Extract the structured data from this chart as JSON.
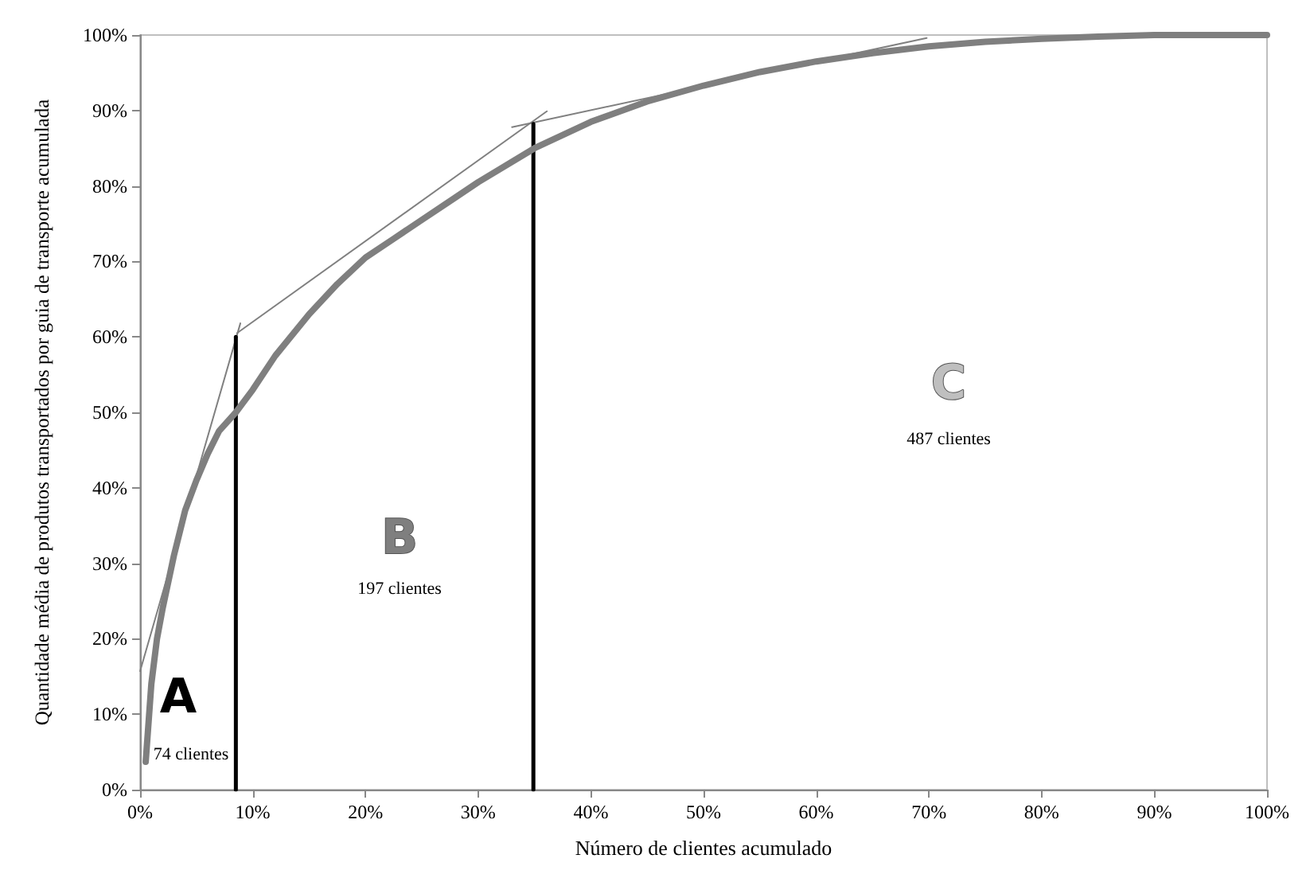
{
  "chart_data": {
    "type": "line",
    "xlabel": "Número de clientes acumulado",
    "ylabel": "Quantidade média de produtos transportados por guia de transporte acumulada",
    "xlim": [
      0,
      100
    ],
    "ylim": [
      0,
      100
    ],
    "xticks": [
      {
        "value": 0,
        "label": "0%"
      },
      {
        "value": 10,
        "label": "10%"
      },
      {
        "value": 20,
        "label": "20%"
      },
      {
        "value": 30,
        "label": "30%"
      },
      {
        "value": 40,
        "label": "40%"
      },
      {
        "value": 50,
        "label": "50%"
      },
      {
        "value": 60,
        "label": "60%"
      },
      {
        "value": 70,
        "label": "70%"
      },
      {
        "value": 80,
        "label": "80%"
      },
      {
        "value": 90,
        "label": "90%"
      },
      {
        "value": 100,
        "label": "100%"
      }
    ],
    "yticks": [
      {
        "value": 0,
        "label": "0%"
      },
      {
        "value": 10,
        "label": "10%"
      },
      {
        "value": 20,
        "label": "20%"
      },
      {
        "value": 30,
        "label": "30%"
      },
      {
        "value": 40,
        "label": "40%"
      },
      {
        "value": 50,
        "label": "50%"
      },
      {
        "value": 60,
        "label": "60%"
      },
      {
        "value": 70,
        "label": "70%"
      },
      {
        "value": 80,
        "label": "80%"
      },
      {
        "value": 90,
        "label": "90%"
      },
      {
        "value": 100,
        "label": "100%"
      }
    ],
    "grid": false,
    "marker": "none",
    "line_style": "solid",
    "series": [
      {
        "color": "#7f7f7f",
        "x": [
          0.5,
          1,
          1.5,
          2,
          3,
          4,
          5,
          6,
          7,
          8.5,
          10,
          12,
          15,
          17.5,
          20,
          22.5,
          25,
          27.5,
          30,
          35,
          40,
          45,
          50,
          55,
          60,
          65,
          70,
          75,
          80,
          85,
          90,
          95,
          100
        ],
        "values": [
          3.7,
          14,
          20,
          24,
          31,
          37,
          41,
          44.5,
          47.5,
          50,
          53,
          57.5,
          63,
          67,
          70.5,
          73,
          75.5,
          78,
          80.5,
          85,
          88.5,
          91.2,
          93.3,
          95.1,
          96.5,
          97.6,
          98.5,
          99.1,
          99.5,
          99.8,
          100,
          100,
          100
        ]
      },
      {
        "color": "#808080",
        "x": [
          0,
          8.9
        ],
        "values": [
          15.7,
          61.8
        ]
      },
      {
        "color": "#808080",
        "x": [
          8.6,
          36.1
        ],
        "values": [
          60.5,
          89.9
        ]
      },
      {
        "color": "#808080",
        "x": [
          33,
          69.8
        ],
        "values": [
          87.8,
          99.6
        ]
      },
      {
        "color": "#000000",
        "x": [
          8.5,
          8.5
        ],
        "values": [
          0,
          60
        ]
      },
      {
        "color": "#000000",
        "x": [
          34.9,
          34.9
        ],
        "values": [
          0,
          88.2
        ]
      }
    ],
    "annotations": [
      "A",
      "74 clientes",
      "B",
      "197 clientes",
      "C",
      "487 clientes"
    ]
  }
}
